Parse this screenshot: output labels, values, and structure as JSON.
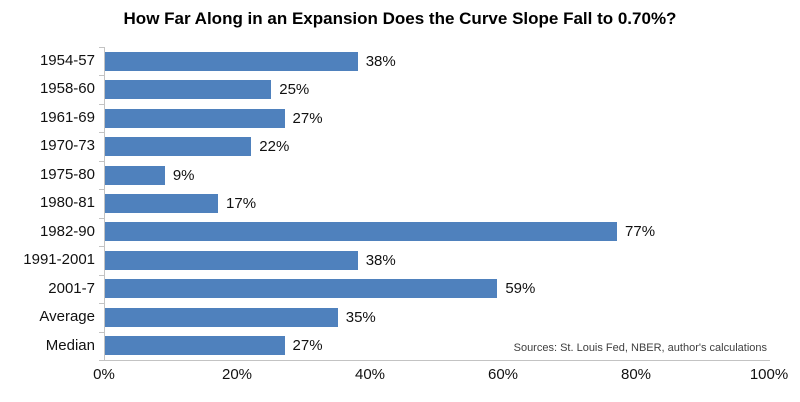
{
  "title": "How Far Along in an Expansion Does the Curve Slope Fall to 0.70%?",
  "source_note": "Sources: St. Louis Fed, NBER, author's calculations",
  "chart_data": {
    "type": "bar",
    "orientation": "horizontal",
    "title": "How Far Along in an Expansion Does the Curve Slope Fall to 0.70%?",
    "categories": [
      "1954-57",
      "1958-60",
      "1961-69",
      "1970-73",
      "1975-80",
      "1980-81",
      "1982-90",
      "1991-2001",
      "2001-7",
      "Average",
      "Median"
    ],
    "values": [
      38,
      25,
      27,
      22,
      9,
      17,
      77,
      38,
      59,
      35,
      27
    ],
    "value_labels": [
      "38%",
      "25%",
      "27%",
      "22%",
      "9%",
      "17%",
      "77%",
      "38%",
      "59%",
      "35%",
      "27%"
    ],
    "xlabel": "",
    "ylabel": "",
    "xlim": [
      0,
      100
    ],
    "x_tick_values": [
      0,
      20,
      40,
      60,
      80,
      100
    ],
    "x_tick_labels": [
      "0%",
      "20%",
      "40%",
      "60%",
      "80%",
      "100%"
    ],
    "grid": false,
    "legend": "none",
    "bar_color": "#4f81bd",
    "axis_color": "#c3c3c3",
    "label_color": "#111111"
  }
}
